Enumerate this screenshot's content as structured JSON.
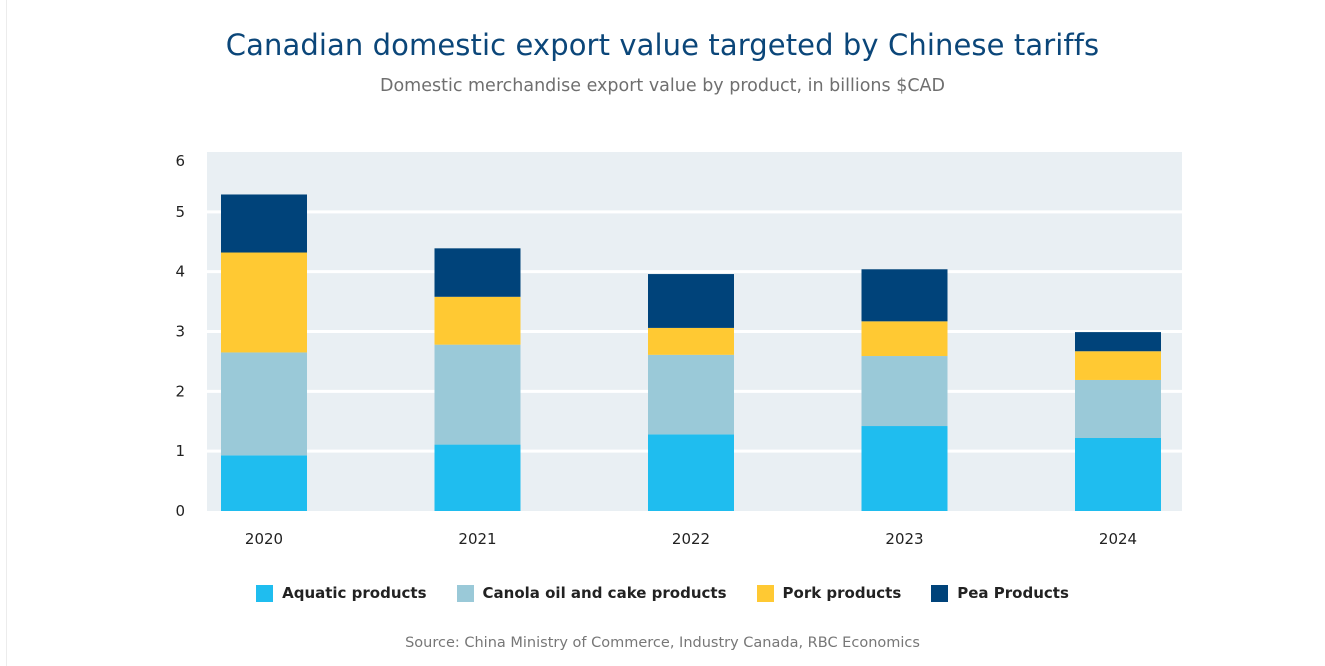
{
  "colors": {
    "title": "#0b4679",
    "plot_bg": "#e9eff3",
    "grid": "#ffffff"
  },
  "chart_data": {
    "type": "bar",
    "stacked": true,
    "title": "Canadian domestic export value targeted by Chinese tariffs",
    "subtitle": "Domestic merchandise export value by product, in billions $CAD",
    "xlabel": "",
    "ylabel": "",
    "categories": [
      "2020",
      "2021",
      "2022",
      "2023",
      "2024"
    ],
    "ylim": [
      0,
      6
    ],
    "yticks": [
      "0",
      "1",
      "2",
      "3",
      "4",
      "5",
      "6"
    ],
    "grid": true,
    "legend_position": "bottom",
    "series": [
      {
        "name": "Aquatic products",
        "color": "#1fbdef",
        "values": [
          0.93,
          1.11,
          1.28,
          1.42,
          1.22
        ]
      },
      {
        "name": "Canola oil and cake products",
        "color": "#9ac9d8",
        "values": [
          1.72,
          1.67,
          1.33,
          1.17,
          0.97
        ]
      },
      {
        "name": "Pork products",
        "color": "#ffc933",
        "values": [
          1.67,
          0.8,
          0.45,
          0.58,
          0.48
        ]
      },
      {
        "name": "Pea Products",
        "color": "#00437a",
        "values": [
          0.97,
          0.81,
          0.9,
          0.87,
          0.32
        ]
      }
    ],
    "source": "Source: China Ministry of Commerce, Industry Canada, RBC Economics"
  }
}
